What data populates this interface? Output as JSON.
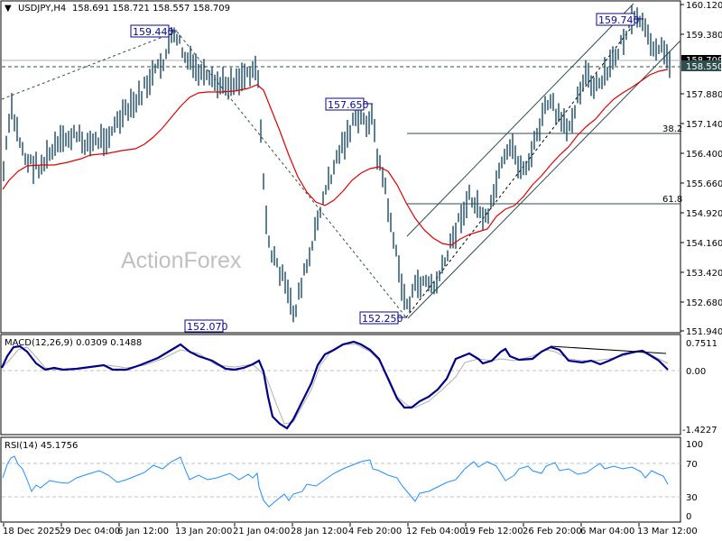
{
  "header": {
    "arrow_icon": "triangle-down-icon",
    "symbol": "USDJPY,H4",
    "ohlc": "158.691 158.721 158.557 158.709"
  },
  "watermark": "ActionForex",
  "main_panel": {
    "price_axis": [
      "160.120",
      "159.380",
      "158.640",
      "157.880",
      "157.140",
      "156.400",
      "155.660",
      "154.920",
      "154.160",
      "153.420",
      "152.680",
      "151.940"
    ],
    "current_price_label": "158.709",
    "level_label": "158.550",
    "annotations": {
      "high1": "159.440",
      "low1": "152.070",
      "high2": "157.650",
      "low2": "152.250",
      "high3": "159.740"
    },
    "fib_labels": {
      "f382": "38.2",
      "f618": "61.8"
    }
  },
  "macd_panel": {
    "title": "MACD(12,26,9) 0.0309 0.1488",
    "axis": [
      "0.7511",
      "0.00",
      "-1.4227"
    ]
  },
  "rsi_panel": {
    "title": "RSI(14) 45.1756",
    "axis": [
      "100",
      "70",
      "30",
      "0"
    ]
  },
  "time_axis": [
    "18 Dec 2025",
    "29 Dec 04:00",
    "6 Jan 12:00",
    "13 Jan 20:00",
    "21 Jan 04:00",
    "28 Jan 12:00",
    "4 Feb 20:00",
    "12 Feb 04:00",
    "19 Feb 12:00",
    "26 Feb 20:00",
    "6 Mar 04:00",
    "13 Mar 12:00"
  ],
  "colors": {
    "bars": "#1a4a66",
    "ma": "#e00000",
    "macd": "#00008b",
    "signal": "#b0b0b0",
    "rsi": "#1e90ff",
    "label_box": "#0a0a8a",
    "price_tag_bg": "#2f4f4f"
  },
  "chart_data": [
    {
      "type": "line",
      "title": "USDJPY,H4",
      "subtitle": "158.691 158.721 158.557 158.709",
      "xlabel": "",
      "ylabel": "",
      "x": [
        "18 Dec 2025",
        "29 Dec 04:00",
        "6 Jan 12:00",
        "13 Jan 20:00",
        "21 Jan 04:00",
        "28 Jan 12:00",
        "4 Feb 20:00",
        "12 Feb 04:00",
        "19 Feb 12:00",
        "26 Feb 20:00",
        "6 Mar 04:00",
        "13 Mar 12:00"
      ],
      "series": [
        {
          "name": "Price (approx close)",
          "values": [
            155.9,
            156.6,
            156.9,
            159.2,
            158.4,
            153.6,
            157.2,
            152.6,
            155.3,
            157.8,
            158.9,
            159.4
          ]
        },
        {
          "name": "Moving Average (red)",
          "values": [
            155.8,
            156.3,
            156.8,
            158.0,
            158.2,
            155.5,
            156.1,
            154.5,
            154.8,
            156.6,
            157.8,
            158.5
          ]
        }
      ],
      "annotations": [
        "159.440 (swing high, ~13 Jan)",
        "152.070 (swing low, ~23 Jan)",
        "157.650 (swing high, ~6 Feb)",
        "152.250 (swing low, ~12 Feb)",
        "159.740 (swing high, ~14 Mar)",
        "Fib 38.2 @ ~156.87",
        "Fib 61.8 @ ~155.06",
        "Horizontal level 158.550",
        "Rising channel from 152.250"
      ],
      "ylim": [
        151.94,
        160.12
      ],
      "grid": false
    },
    {
      "type": "line",
      "title": "MACD(12,26,9) 0.0309 0.1488",
      "x": [
        "18 Dec 2025",
        "29 Dec 04:00",
        "6 Jan 12:00",
        "13 Jan 20:00",
        "21 Jan 04:00",
        "28 Jan 12:00",
        "4 Feb 20:00",
        "12 Feb 04:00",
        "19 Feb 12:00",
        "26 Feb 20:00",
        "6 Mar 04:00",
        "13 Mar 12:00"
      ],
      "series": [
        {
          "name": "MACD",
          "values": [
            0.05,
            0.55,
            0.0,
            0.15,
            0.2,
            -1.35,
            0.7,
            -0.9,
            0.45,
            0.6,
            0.25,
            0.03
          ]
        },
        {
          "name": "Signal",
          "values": [
            0.0,
            0.5,
            0.05,
            0.1,
            0.35,
            -1.2,
            0.6,
            -0.7,
            0.3,
            0.55,
            0.35,
            0.15
          ]
        }
      ],
      "ylim": [
        -1.4227,
        0.7511
      ]
    },
    {
      "type": "line",
      "title": "RSI(14) 45.1756",
      "x": [
        "18 Dec 2025",
        "29 Dec 04:00",
        "6 Jan 12:00",
        "13 Jan 20:00",
        "21 Jan 04:00",
        "28 Jan 12:00",
        "4 Feb 20:00",
        "12 Feb 04:00",
        "19 Feb 12:00",
        "26 Feb 20:00",
        "6 Mar 04:00",
        "13 Mar 12:00"
      ],
      "series": [
        {
          "name": "RSI",
          "values": [
            72,
            52,
            58,
            78,
            58,
            30,
            72,
            30,
            52,
            66,
            64,
            45
          ]
        }
      ],
      "levels": [
        30,
        70
      ],
      "ylim": [
        0,
        100
      ]
    }
  ]
}
